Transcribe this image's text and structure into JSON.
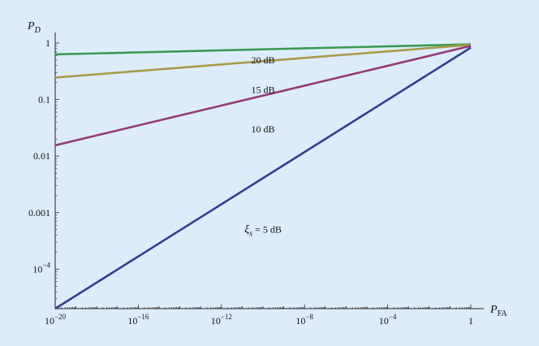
{
  "chart_data": {
    "type": "line",
    "title": "",
    "xlabel": {
      "main": "P",
      "sub": "FA"
    },
    "ylabel": {
      "main": "P",
      "sub": "D"
    },
    "x_scale": "log",
    "y_scale": "log",
    "xlim": [
      1e-20,
      1
    ],
    "ylim": [
      2e-05,
      1
    ],
    "x_ticks": [
      {
        "value": 1e-20,
        "base": "10",
        "exp": "−20"
      },
      {
        "value": 1e-16,
        "base": "10",
        "exp": "−16"
      },
      {
        "value": 1e-12,
        "base": "10",
        "exp": "−12"
      },
      {
        "value": 1e-08,
        "base": "10",
        "exp": "−8"
      },
      {
        "value": 0.0001,
        "base": "10",
        "exp": "−4"
      },
      {
        "value": 1,
        "base": "1",
        "exp": ""
      }
    ],
    "y_ticks": [
      {
        "value": 1,
        "base": "1",
        "exp": ""
      },
      {
        "value": 0.1,
        "base": "0.1",
        "exp": ""
      },
      {
        "value": 0.01,
        "base": "0.01",
        "exp": ""
      },
      {
        "value": 0.001,
        "base": "0.001",
        "exp": ""
      },
      {
        "value": 0.0001,
        "base": "10",
        "exp": "−4"
      }
    ],
    "grid": false,
    "series": [
      {
        "name": "20 dB",
        "color": "#3a9a52",
        "points": [
          [
            1e-20,
            0.63
          ],
          [
            1,
            0.95
          ]
        ],
        "label": {
          "text": "20 dB",
          "x": 1e-10,
          "y": 0.5
        }
      },
      {
        "name": "15 dB",
        "color": "#a99a4a",
        "points": [
          [
            1e-20,
            0.245
          ],
          [
            1,
            0.93
          ]
        ],
        "label": {
          "text": "15 dB",
          "x": 1e-10,
          "y": 0.15
        }
      },
      {
        "name": "10 dB",
        "color": "#993a78",
        "points": [
          [
            1e-20,
            0.0155
          ],
          [
            1,
            0.89
          ]
        ],
        "label": {
          "text": "10 dB",
          "x": 1e-10,
          "y": 0.03
        }
      },
      {
        "name": "5 dB",
        "color": "#363e8e",
        "points": [
          [
            1e-20,
            2e-05
          ],
          [
            1,
            0.83
          ]
        ],
        "label": {
          "text": "= 5 dB",
          "prefix": "ξ",
          "prefix_sub": "s",
          "x": 1e-10,
          "y": 0.0005
        }
      }
    ]
  }
}
